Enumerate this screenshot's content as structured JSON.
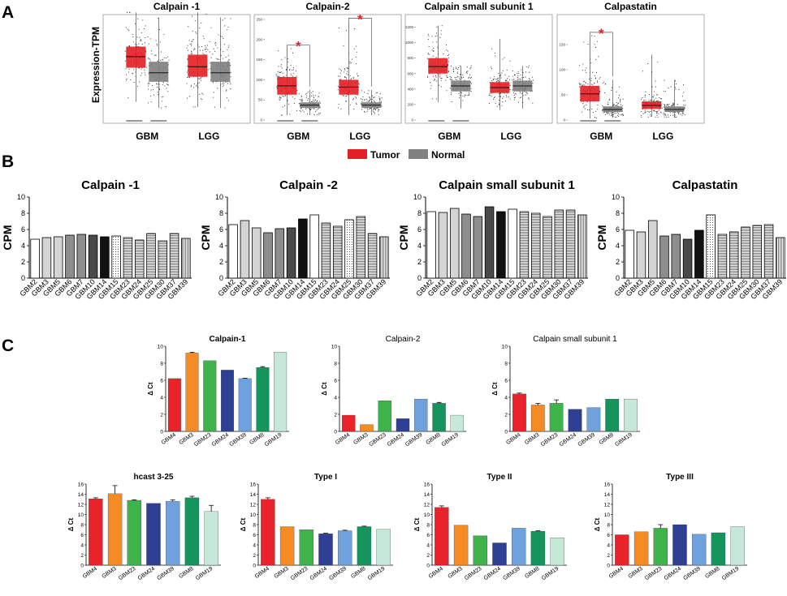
{
  "panels": {
    "A": "A",
    "B": "B",
    "C": "C"
  },
  "colors": {
    "tumor": "#e31e24",
    "normal": "#808080"
  },
  "chart_data": [
    {
      "panel": "A",
      "type": "box",
      "ylabel": "Expression-TPM",
      "groups": [
        "GBM",
        "LGG"
      ],
      "legend": [
        {
          "label": "Tumor",
          "color": "#e31e24"
        },
        {
          "label": "Normal",
          "color": "#808080"
        }
      ],
      "subplots": [
        {
          "title": "Calpain -1",
          "ylim": [
            0,
            100
          ],
          "yticks": [],
          "boxes": [
            {
              "group": "GBM",
              "series": "Tumor",
              "q1": 52,
              "median": 63,
              "q3": 73,
              "whislo": 18,
              "whishi": 107
            },
            {
              "group": "GBM",
              "series": "Normal",
              "q1": 38,
              "median": 47,
              "q3": 58,
              "whislo": 12,
              "whishi": 102
            },
            {
              "group": "LGG",
              "series": "Tumor",
              "q1": 43,
              "median": 53,
              "q3": 65,
              "whislo": 13,
              "whishi": 107
            },
            {
              "group": "LGG",
              "series": "Normal",
              "q1": 38,
              "median": 47,
              "q3": 58,
              "whislo": 12,
              "whishi": 102
            }
          ],
          "significant": []
        },
        {
          "title": "Calpain-2",
          "ylim": [
            0,
            250
          ],
          "yticks": [
            "0",
            "50",
            "100",
            "150",
            "200",
            "250"
          ],
          "boxes": [
            {
              "group": "GBM",
              "series": "Tumor",
              "q1": 63,
              "median": 85,
              "q3": 107,
              "whislo": 12,
              "whishi": 178
            },
            {
              "group": "GBM",
              "series": "Normal",
              "q1": 30,
              "median": 37,
              "q3": 44,
              "whislo": 12,
              "whishi": 75
            },
            {
              "group": "LGG",
              "series": "Tumor",
              "q1": 63,
              "median": 82,
              "q3": 100,
              "whislo": 12,
              "whishi": 245
            },
            {
              "group": "LGG",
              "series": "Normal",
              "q1": 30,
              "median": 37,
              "q3": 44,
              "whislo": 12,
              "whishi": 75
            }
          ],
          "significant": [
            "GBM",
            "LGG"
          ]
        },
        {
          "title": "Calpain small subunit 1",
          "ylim": [
            0,
            1300
          ],
          "yticks": [
            "0",
            "200",
            "400",
            "600",
            "800",
            "1000",
            "1200"
          ],
          "boxes": [
            {
              "group": "GBM",
              "series": "Tumor",
              "q1": 600,
              "median": 690,
              "q3": 800,
              "whislo": 230,
              "whishi": 1220
            },
            {
              "group": "GBM",
              "series": "Normal",
              "q1": 370,
              "median": 440,
              "q3": 510,
              "whislo": 150,
              "whishi": 700
            },
            {
              "group": "LGG",
              "series": "Tumor",
              "q1": 350,
              "median": 420,
              "q3": 490,
              "whislo": 130,
              "whishi": 1050
            },
            {
              "group": "LGG",
              "series": "Normal",
              "q1": 370,
              "median": 440,
              "q3": 510,
              "whislo": 150,
              "whishi": 700
            }
          ],
          "significant": []
        },
        {
          "title": "Calpastatin",
          "ylim": [
            0,
            200
          ],
          "yticks": [
            "0",
            "50",
            "100",
            "150"
          ],
          "boxes": [
            {
              "group": "GBM",
              "series": "Tumor",
              "q1": 37,
              "median": 52,
              "q3": 68,
              "whislo": 3,
              "whishi": 168
            },
            {
              "group": "GBM",
              "series": "Normal",
              "q1": 16,
              "median": 21,
              "q3": 27,
              "whislo": 6,
              "whishi": 80
            },
            {
              "group": "LGG",
              "series": "Tumor",
              "q1": 22,
              "median": 29,
              "q3": 37,
              "whislo": 6,
              "whishi": 130
            },
            {
              "group": "LGG",
              "series": "Normal",
              "q1": 16,
              "median": 21,
              "q3": 27,
              "whislo": 6,
              "whishi": 80
            }
          ],
          "significant": [
            "GBM"
          ]
        }
      ]
    },
    {
      "panel": "B",
      "type": "bar",
      "ylabel": "CPM",
      "ylim": [
        0,
        10
      ],
      "yticks": [
        "0",
        "2",
        "4",
        "6",
        "8",
        "10"
      ],
      "subplots": [
        {
          "title": "Calpain -1",
          "categories": [
            "GBM2",
            "GBM3",
            "GBM5",
            "GBM6",
            "GBM7",
            "GBM10",
            "GBM14",
            "GBM15",
            "GBM23",
            "GBM24",
            "GBM25",
            "GBM30",
            "GBM37",
            "GBM39"
          ],
          "values": [
            4.8,
            5.0,
            5.1,
            5.3,
            5.4,
            5.3,
            5.1,
            5.2,
            5.0,
            4.7,
            5.5,
            4.6,
            5.5,
            4.9
          ],
          "styles": [
            "white",
            "light",
            "light",
            "mid",
            "mid",
            "dark",
            "black",
            "dots",
            "hstripe",
            "hstripe",
            "hstripe",
            "hstripe",
            "hstripe",
            "vstripe"
          ]
        },
        {
          "title": "Calpain -2",
          "categories": [
            "GBM2",
            "GBM3",
            "GBM5",
            "GBM6",
            "GBM7",
            "GBM10",
            "GBM14",
            "GBM15",
            "GBM23",
            "GBM24",
            "GBM25",
            "GBM30",
            "GBM37",
            "GBM39"
          ],
          "values": [
            6.6,
            7.1,
            6.2,
            5.6,
            6.1,
            6.2,
            7.3,
            7.8,
            6.8,
            6.4,
            7.2,
            7.6,
            5.5,
            5.1
          ],
          "styles": [
            "white",
            "light",
            "light",
            "mid",
            "mid",
            "dark",
            "black",
            "white",
            "hstripe",
            "hstripe",
            "dots",
            "hstripe",
            "hstripe",
            "vstripe"
          ]
        },
        {
          "title": "Calpain small subunit 1",
          "categories": [
            "GBM2",
            "GBM3",
            "GBM5",
            "GBM6",
            "GBM7",
            "GBM10",
            "GBM14",
            "GBM15",
            "GBM23",
            "GBM24",
            "GBM25",
            "GBM30",
            "GBM37",
            "GBM39"
          ],
          "values": [
            8.2,
            8.1,
            8.6,
            7.9,
            7.6,
            8.8,
            8.2,
            8.5,
            8.2,
            8.0,
            7.6,
            8.4,
            8.4,
            7.8
          ],
          "styles": [
            "white",
            "light",
            "light",
            "mid",
            "mid",
            "dark",
            "black",
            "white",
            "hstripe",
            "hstripe",
            "hstripe",
            "hstripe",
            "hstripe",
            "vstripe"
          ]
        },
        {
          "title": "Calpastatin",
          "categories": [
            "GBM2",
            "GBM3",
            "GBM5",
            "GBM6",
            "GBM7",
            "GBM10",
            "GBM14",
            "GBM15",
            "GBM23",
            "GBM24",
            "GBM25",
            "GBM30",
            "GBM37",
            "GBM39"
          ],
          "values": [
            5.9,
            5.7,
            7.1,
            5.2,
            5.4,
            4.8,
            5.9,
            7.8,
            5.4,
            5.7,
            6.3,
            6.5,
            6.6,
            5.0
          ],
          "styles": [
            "white",
            "light",
            "light",
            "mid",
            "mid",
            "dark",
            "black",
            "dots",
            "hstripe",
            "hstripe",
            "hstripe",
            "hstripe",
            "hstripe",
            "vstripe"
          ]
        }
      ]
    },
    {
      "panel": "C",
      "type": "bar",
      "ylabel": "Δ Ct",
      "categories": [
        "GBM4",
        "GBM3",
        "GBM23",
        "GBM24",
        "GBM39",
        "GBM8",
        "GBM19"
      ],
      "bar_colors": [
        "#e8242a",
        "#f58b24",
        "#3db34a",
        "#2e3f94",
        "#6fa2dc",
        "#15955d",
        "#c5e8d8"
      ],
      "subplots": [
        {
          "title": "Calpain-1",
          "ylim": [
            0,
            10
          ],
          "yticks": [
            "0",
            "2",
            "4",
            "6",
            "8",
            "10"
          ],
          "values": [
            6.2,
            9.2,
            8.3,
            7.2,
            6.2,
            7.5,
            9.3
          ],
          "errors": [
            0,
            0.1,
            0,
            0,
            0.05,
            0.1,
            0
          ]
        },
        {
          "title": "Calpain-2",
          "ylim": [
            0,
            10
          ],
          "yticks": [
            "0",
            "2",
            "4",
            "6",
            "8",
            "10"
          ],
          "values": [
            1.9,
            0.8,
            3.6,
            1.5,
            3.8,
            3.3,
            1.9
          ],
          "errors": [
            0,
            0,
            0,
            0,
            0,
            0.1,
            0
          ]
        },
        {
          "title": "Calpain small subunit 1",
          "ylim": [
            0,
            10
          ],
          "yticks": [
            "0",
            "2",
            "4",
            "6",
            "8",
            "10"
          ],
          "values": [
            4.4,
            3.1,
            3.3,
            2.6,
            2.8,
            3.8,
            3.8
          ],
          "errors": [
            0.1,
            0.2,
            0.4,
            0,
            0,
            0,
            0
          ]
        },
        {
          "title": "hcast 3-25",
          "ylim": [
            0,
            16
          ],
          "yticks": [
            "0",
            "2",
            "4",
            "6",
            "8",
            "10",
            "12",
            "14",
            "16"
          ],
          "values": [
            13.1,
            14.1,
            12.8,
            12.2,
            12.6,
            13.3,
            10.6
          ],
          "errors": [
            0.2,
            1.6,
            0.1,
            0,
            0.3,
            0.3,
            1.2
          ]
        },
        {
          "title": "Type I",
          "ylim": [
            0,
            16
          ],
          "yticks": [
            "0",
            "2",
            "4",
            "6",
            "8",
            "10",
            "12",
            "14",
            "16"
          ],
          "values": [
            13.0,
            7.6,
            7.0,
            6.2,
            6.8,
            7.6,
            7.1
          ],
          "errors": [
            0.3,
            0,
            0,
            0.1,
            0.1,
            0.1,
            0
          ]
        },
        {
          "title": "Type II",
          "ylim": [
            0,
            16
          ],
          "yticks": [
            "0",
            "2",
            "4",
            "6",
            "8",
            "10",
            "12",
            "14",
            "16"
          ],
          "values": [
            11.4,
            7.9,
            5.8,
            4.4,
            7.3,
            6.7,
            5.4
          ],
          "errors": [
            0.3,
            0,
            0,
            0,
            0,
            0.1,
            0
          ]
        },
        {
          "title": "Type III",
          "ylim": [
            0,
            16
          ],
          "yticks": [
            "0",
            "2",
            "4",
            "6",
            "8",
            "10",
            "12",
            "14",
            "16"
          ],
          "values": [
            6.0,
            6.6,
            7.3,
            8.0,
            6.1,
            6.4,
            7.6
          ],
          "errors": [
            0,
            0,
            0.7,
            0,
            0,
            0,
            0
          ]
        }
      ]
    }
  ]
}
